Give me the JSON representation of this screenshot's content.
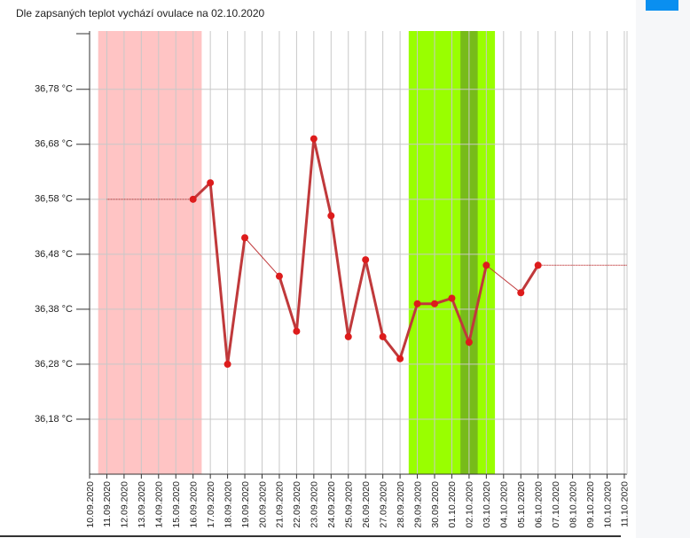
{
  "chart_data": {
    "type": "line",
    "title": "Dle zapsaných teplot vychází ovulace na 02.10.2020",
    "categories": [
      "10.09.2020",
      "11.09.2020",
      "12.09.2020",
      "13.09.2020",
      "14.09.2020",
      "15.09.2020",
      "16.09.2020",
      "17.09.2020",
      "18.09.2020",
      "19.09.2020",
      "20.09.2020",
      "21.09.2020",
      "22.09.2020",
      "23.09.2020",
      "24.09.2020",
      "25.09.2020",
      "26.09.2020",
      "27.09.2020",
      "28.09.2020",
      "29.09.2020",
      "30.09.2020",
      "01.10.2020",
      "02.10.2020",
      "03.10.2020",
      "04.10.2020",
      "05.10.2020",
      "06.10.2020",
      "07.10.2020",
      "08.10.2020",
      "09.10.2020",
      "10.10.2020",
      "11.10.2020"
    ],
    "series": [
      {
        "color": "#c0393b",
        "values": [
          null,
          null,
          null,
          null,
          null,
          null,
          36.58,
          36.61,
          36.28,
          36.51,
          null,
          36.44,
          36.34,
          36.69,
          36.55,
          36.33,
          36.47,
          36.33,
          36.29,
          36.39,
          36.39,
          36.4,
          36.32,
          36.46,
          null,
          36.41,
          36.46,
          null,
          null,
          null,
          null,
          null
        ]
      }
    ],
    "ylim": [
      36.08,
      36.886
    ],
    "yticks": [
      {
        "value": 36.18,
        "label": "36,18 °C"
      },
      {
        "value": 36.28,
        "label": "36,28 °C"
      },
      {
        "value": 36.38,
        "label": "36,38 °C"
      },
      {
        "value": 36.48,
        "label": "36,48 °C"
      },
      {
        "value": 36.58,
        "label": "36,58 °C"
      },
      {
        "value": 36.68,
        "label": "36,68 °C"
      },
      {
        "value": 36.78,
        "label": "36,78 °C"
      }
    ],
    "grid": true,
    "bands": [
      {
        "from": 1,
        "to": 6,
        "color": "#ffc4c4"
      },
      {
        "from": 19,
        "to": 23,
        "color": "#99ff00"
      },
      {
        "from": 22,
        "to": 22,
        "color": "#77bb1a"
      }
    ]
  }
}
